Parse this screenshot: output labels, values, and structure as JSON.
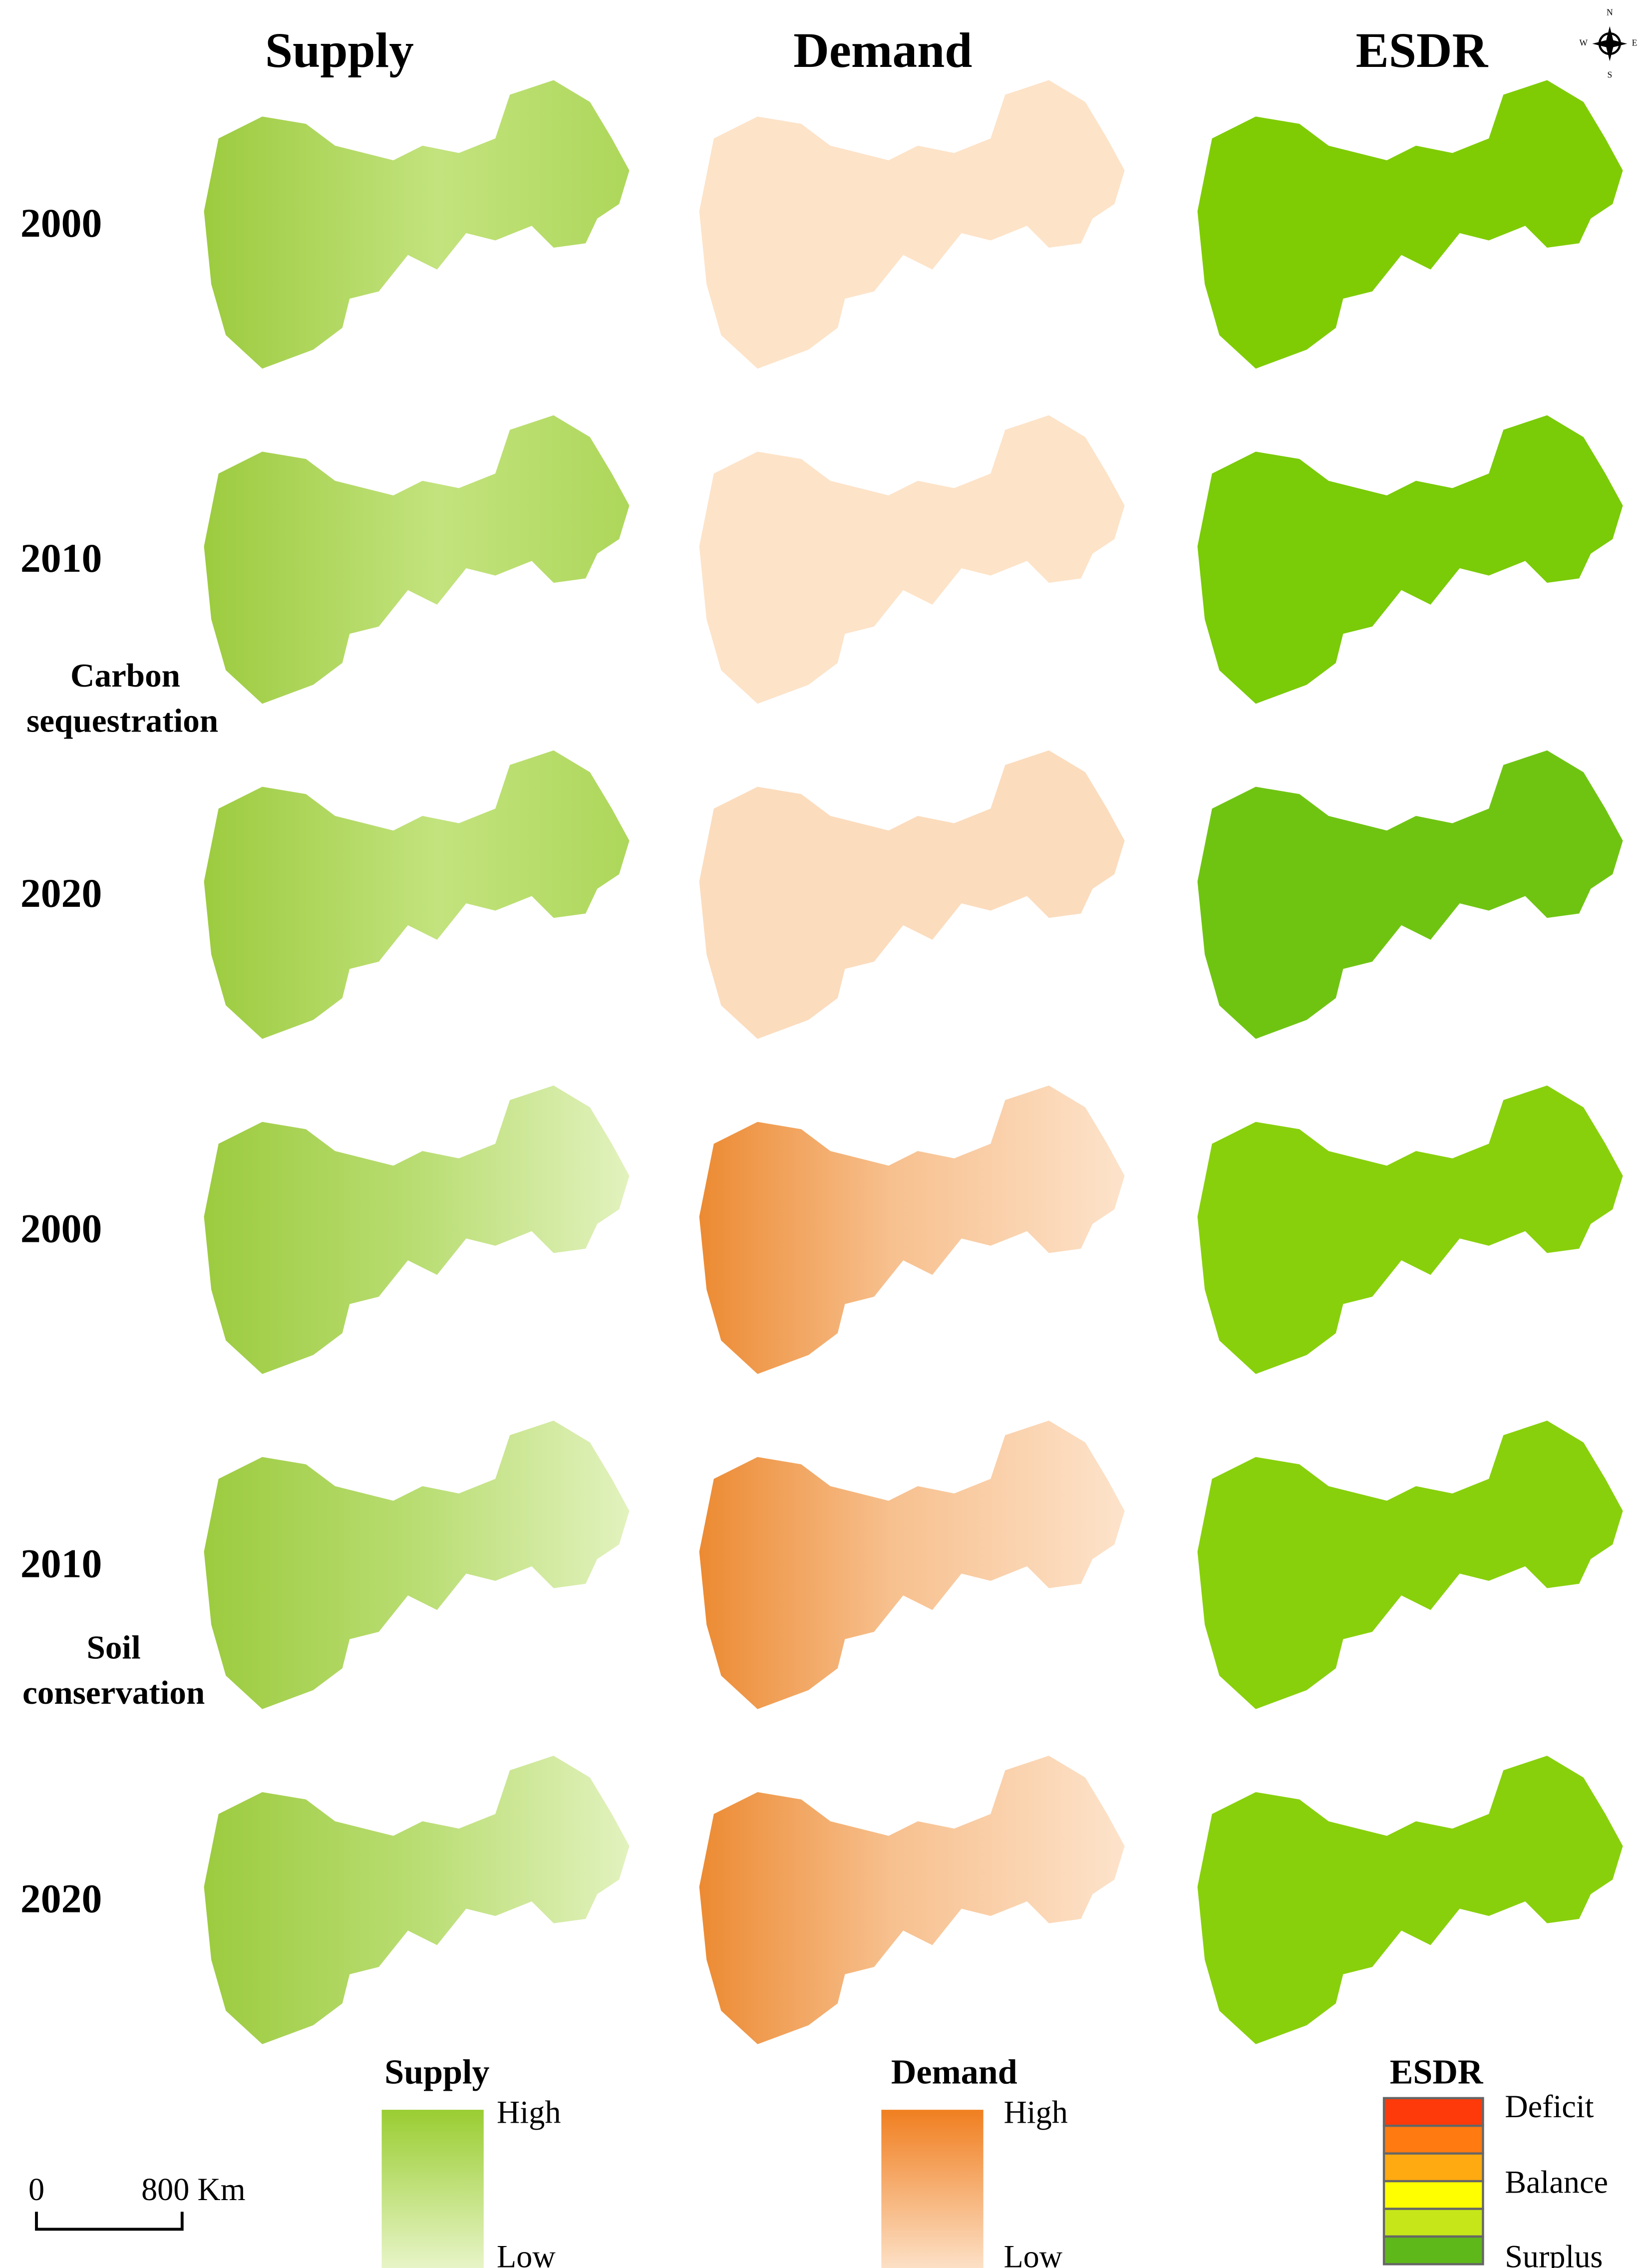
{
  "columns": [
    "Supply",
    "Demand",
    "ESDR"
  ],
  "rows": [
    {
      "year": "2000"
    },
    {
      "year": "2010"
    },
    {
      "year": "2020"
    },
    {
      "year": "2000"
    },
    {
      "year": "2010"
    },
    {
      "year": "2020"
    }
  ],
  "groups": [
    {
      "lines": [
        "Carbon",
        "sequestration"
      ]
    },
    {
      "lines": [
        "Soil",
        "conservation"
      ]
    }
  ],
  "legends": {
    "supply": {
      "title": "Supply",
      "high": "High",
      "low": "Low"
    },
    "demand": {
      "title": "Demand",
      "high": "High",
      "low": "Low"
    },
    "esdr": {
      "title": "ESDR",
      "labels": [
        "Deficit",
        "Balance",
        "Surplus"
      ]
    }
  },
  "scale_bar": {
    "start": "0",
    "end": "800 Km"
  },
  "compass": {
    "n": "N",
    "e": "E",
    "s": "S",
    "w": "W"
  }
}
